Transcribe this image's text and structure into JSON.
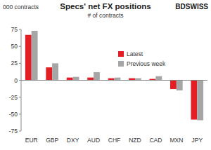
{
  "chart_data": {
    "type": "bar",
    "title": "Specs' net FX positions",
    "subtitle": "# of contracts",
    "y_label": "000 contracts",
    "logo": "BDSWISS",
    "categories": [
      "EUR",
      "GBP",
      "DXY",
      "AUD",
      "CHF",
      "NZD",
      "CAD",
      "MXN",
      "JPY"
    ],
    "series": [
      {
        "name": "Latest",
        "color": "#e31e24",
        "values": [
          67,
          19,
          4,
          4,
          3,
          3,
          2,
          -13,
          -58
        ]
      },
      {
        "name": "Previous week",
        "color": "#a6a6a6",
        "values": [
          73,
          25,
          5,
          12,
          4,
          3,
          6,
          -15,
          -59
        ]
      }
    ],
    "ylim": [
      -75,
      75
    ],
    "yticks": [
      -75,
      -50,
      -25,
      0,
      25,
      50,
      75
    ],
    "grid": false,
    "legend": "right"
  }
}
